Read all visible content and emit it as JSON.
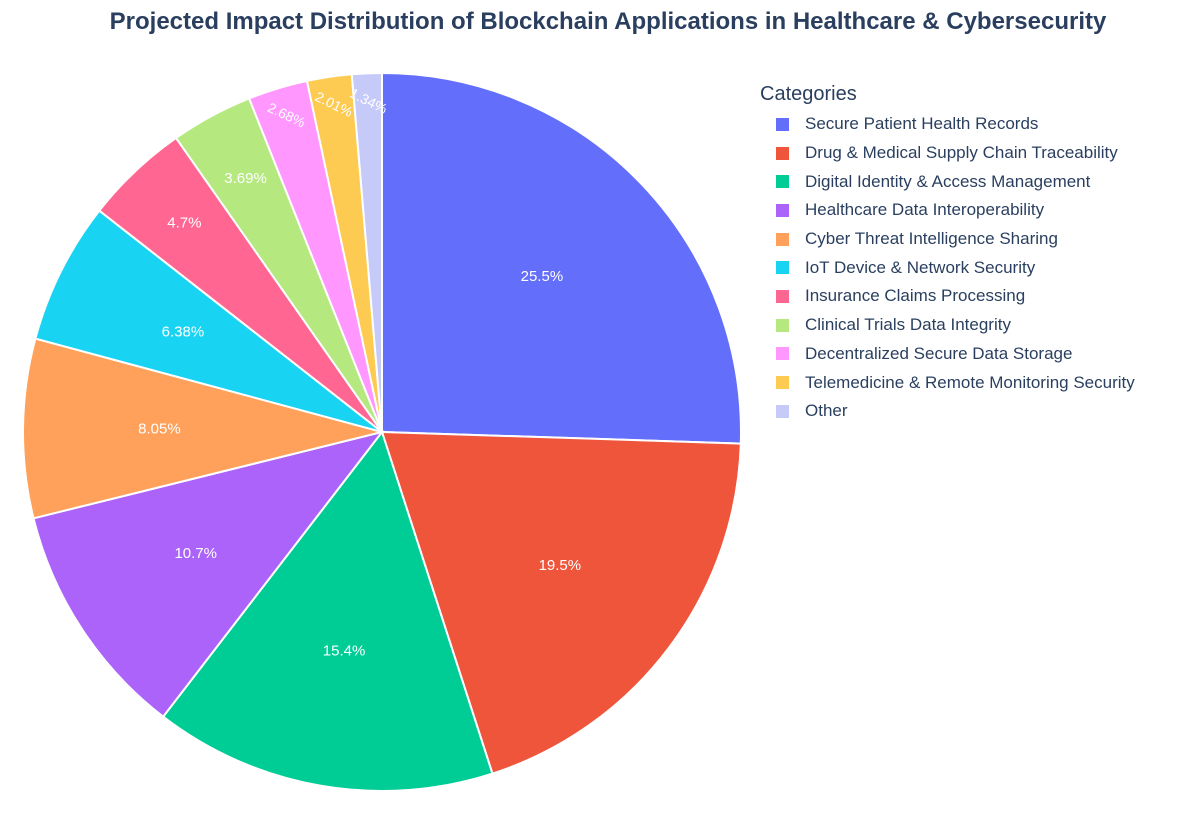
{
  "chart_data": {
    "type": "pie",
    "title": "Projected Impact Distribution of Blockchain Applications in Healthcare & Cybersecurity",
    "legend": {
      "title": "Categories",
      "placement": "right"
    },
    "direction": "clockwise",
    "sort": "descending",
    "slices": [
      {
        "label": "Secure Patient Health Records",
        "value": 25.5,
        "text": "25.5%",
        "color": "#636efa"
      },
      {
        "label": "Drug & Medical Supply Chain Traceability",
        "value": 19.5,
        "text": "19.5%",
        "color": "#ef553b"
      },
      {
        "label": "Digital Identity & Access Management",
        "value": 15.4,
        "text": "15.4%",
        "color": "#00cc96"
      },
      {
        "label": "Healthcare Data Interoperability",
        "value": 10.7,
        "text": "10.7%",
        "color": "#ab63fa"
      },
      {
        "label": "Cyber Threat Intelligence Sharing",
        "value": 8.05,
        "text": "8.05%",
        "color": "#ffa15a"
      },
      {
        "label": "IoT Device & Network Security",
        "value": 6.38,
        "text": "6.38%",
        "color": "#19d3f3"
      },
      {
        "label": "Insurance Claims Processing",
        "value": 4.7,
        "text": "4.7%",
        "color": "#ff6692"
      },
      {
        "label": "Clinical Trials Data Integrity",
        "value": 3.69,
        "text": "3.69%",
        "color": "#b6e880"
      },
      {
        "label": "Decentralized Secure Data Storage",
        "value": 2.68,
        "text": "2.68%",
        "color": "#ff97ff"
      },
      {
        "label": "Telemedicine & Remote Monitoring Security",
        "value": 2.01,
        "text": "2.01%",
        "color": "#fecb52"
      },
      {
        "label": "Other",
        "value": 1.34,
        "text": "1.34%",
        "color": "#c6caf8"
      }
    ]
  }
}
